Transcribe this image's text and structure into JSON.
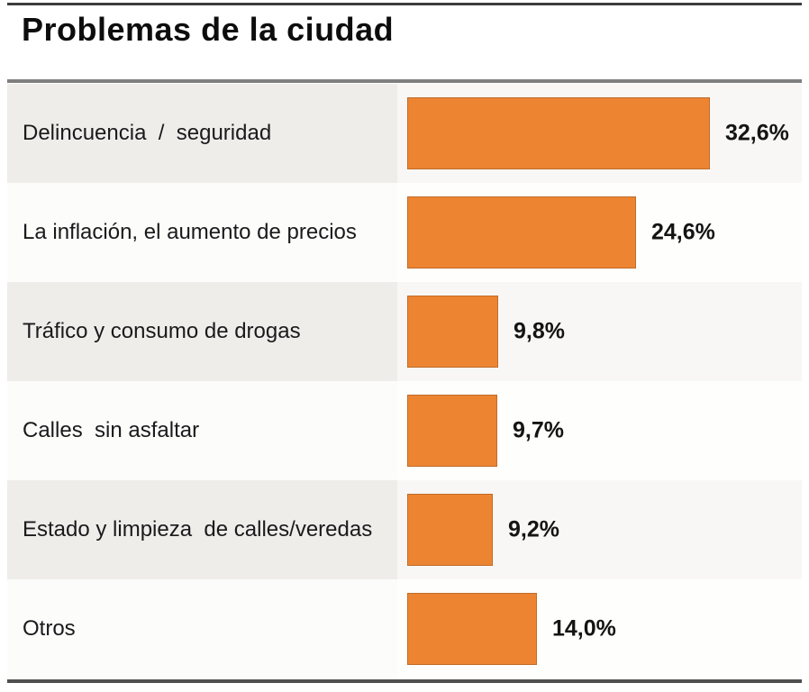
{
  "title": "Problemas de la ciudad",
  "chart_data": {
    "type": "bar",
    "orientation": "horizontal",
    "title": "Problemas de la ciudad",
    "categories": [
      "Delincuencia  /  seguridad",
      "La inflación, el aumento de precios",
      "Tráfico y consumo de drogas",
      "Calles  sin asfaltar",
      "Estado y limpieza  de calles/veredas",
      "Otros"
    ],
    "values": [
      32.6,
      24.6,
      9.8,
      9.7,
      9.2,
      14.0
    ],
    "value_labels": [
      "32,6%",
      "24,6%",
      "9,8%",
      "9,7%",
      "9,2%",
      "14,0%"
    ],
    "xlim": [
      0,
      42.5
    ],
    "axis_visible": false,
    "grid": false,
    "legend": "none",
    "bar_color": "#ec8432",
    "row_stripe_colors": [
      "#efedea",
      "#fcfcfb"
    ],
    "text_color": "#1a1a1c"
  }
}
